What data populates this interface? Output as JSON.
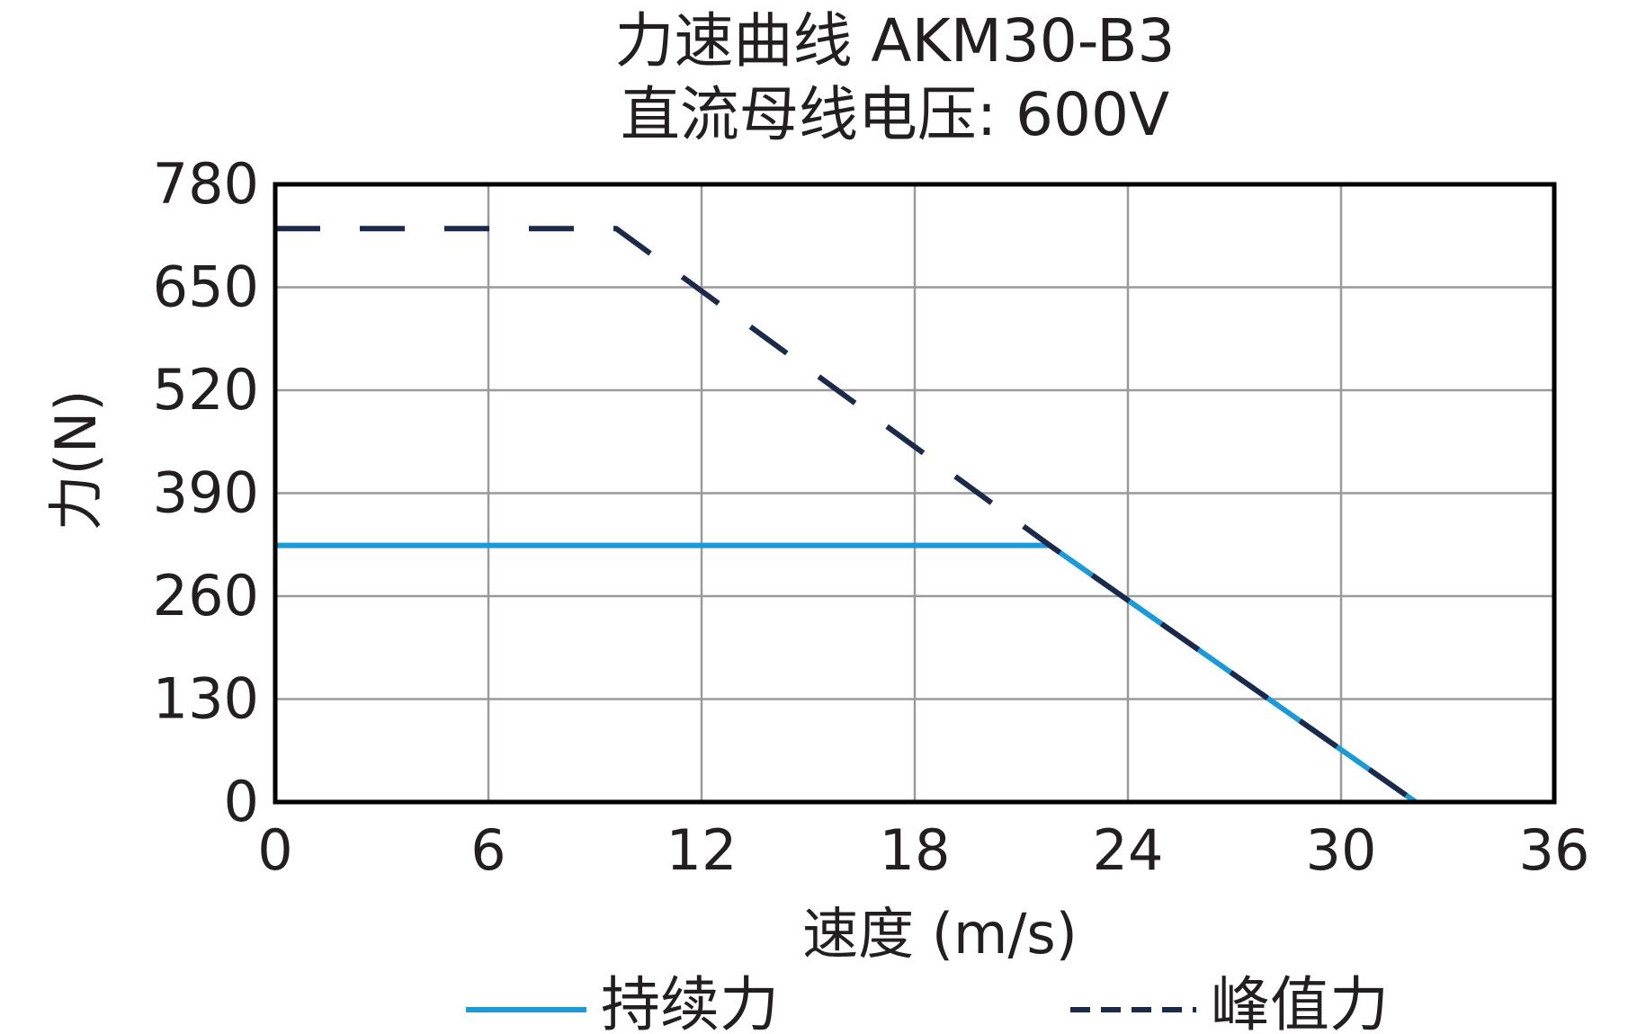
{
  "chart_data": {
    "type": "line",
    "title": "力速曲线 AKM30-B3",
    "subtitle": "直流母线电压: 600V",
    "xlabel": "速度 (m/s)",
    "ylabel": "力(N)",
    "xlim": [
      0,
      36
    ],
    "ylim": [
      0,
      780
    ],
    "xticks": [
      0,
      6,
      12,
      18,
      24,
      30,
      36
    ],
    "yticks": [
      0,
      130,
      260,
      390,
      520,
      650,
      780
    ],
    "grid": true,
    "legend_position": "bottom",
    "series": [
      {
        "name": "持续力",
        "color": "#1a9ad6",
        "style": "solid",
        "points": [
          [
            0,
            324
          ],
          [
            21.8,
            324
          ],
          [
            32.1,
            0
          ]
        ]
      },
      {
        "name": "峰值力",
        "color": "#1b2a4a",
        "style": "dashed",
        "points": [
          [
            0,
            724
          ],
          [
            9.6,
            724
          ],
          [
            21.8,
            324
          ],
          [
            32.1,
            0
          ]
        ]
      }
    ]
  }
}
